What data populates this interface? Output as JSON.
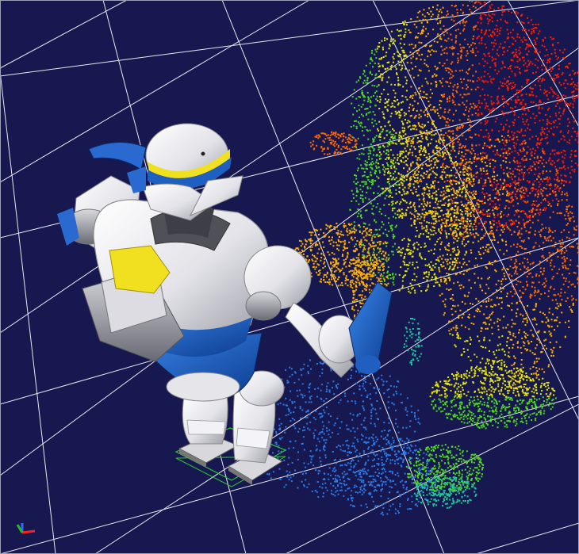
{
  "viewer": {
    "background_color": "#171850",
    "grid_color": "#e8e8f0",
    "robot_body_color": "#e6e6ea",
    "robot_accent_color": "#1f5fc0",
    "robot_yellow_color": "#f0e020",
    "foot_box_color": "#30c830",
    "point_cloud_colormap": [
      "#ff1a00",
      "#ff6a00",
      "#ffb000",
      "#e8e800",
      "#50d820",
      "#20c8a0",
      "#2a7ae8"
    ],
    "axis_gizmo": {
      "x_color": "#ff2020",
      "y_color": "#20c020",
      "z_color": "#4060ff"
    }
  }
}
